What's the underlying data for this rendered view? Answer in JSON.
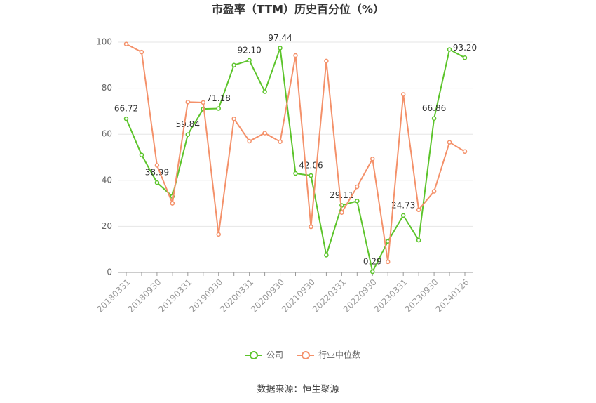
{
  "chart_data": {
    "type": "line",
    "title": "市盈率（TTM）历史百分位（%）",
    "categories": [
      "20180331",
      null,
      "20180930",
      null,
      "20190331",
      null,
      "20190930",
      null,
      "20200331",
      null,
      "20200930",
      null,
      "20210930",
      null,
      "20220331",
      null,
      "20220930",
      null,
      "20230331",
      null,
      "20230930",
      null,
      "20240126"
    ],
    "series": [
      {
        "name": "公司",
        "color": "#5cc42b",
        "values": [
          66.72,
          51,
          38.99,
          33,
          59.84,
          71,
          71.18,
          90,
          92.1,
          78.5,
          97.44,
          43,
          42.06,
          7.5,
          29.11,
          31,
          0.29,
          13.5,
          24.73,
          14,
          66.86,
          96.8,
          93.2
        ],
        "value_labels": [
          "66.72",
          null,
          "38.99",
          null,
          "59.84",
          null,
          "71.18",
          null,
          "92.10",
          null,
          "97.44",
          null,
          "42.06",
          null,
          "29.11",
          null,
          "0.29",
          null,
          "24.73",
          null,
          "66.86",
          null,
          "93.20"
        ]
      },
      {
        "name": "行业中位数",
        "color": "#f4916a",
        "values": [
          99.2,
          95.7,
          46.5,
          30,
          74,
          73.8,
          16.5,
          66.7,
          57,
          60.5,
          56.8,
          94.2,
          19.8,
          91.8,
          26,
          37.2,
          49.3,
          4.6,
          77.3,
          27.2,
          35.2,
          56.5,
          52.5
        ]
      }
    ],
    "ylim": [
      0,
      100
    ],
    "yticks": [
      0,
      20,
      40,
      60,
      80,
      100
    ],
    "grid": true,
    "source": "数据来源：恒生聚源"
  }
}
